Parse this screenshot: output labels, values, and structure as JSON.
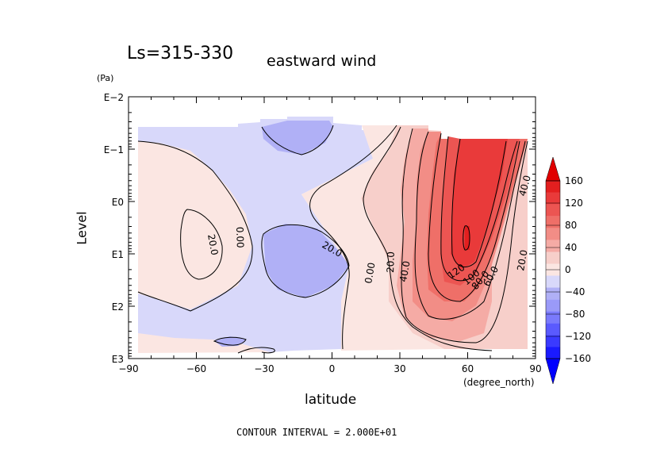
{
  "chart_data": {
    "type": "heatmap",
    "title": "Ls=315-330",
    "subtitle": "eastward wind",
    "xlabel": "latitude",
    "x_unit": "(degree_north)",
    "ylabel": "Level",
    "y_unit": "(Pa)",
    "y_scale": "log",
    "x_ticks": [
      "−90",
      "−60",
      "−30",
      "0",
      "30",
      "60",
      "90"
    ],
    "y_ticks": [
      "E−2",
      "E−1",
      "E0",
      "E1",
      "E2",
      "E3"
    ],
    "xlim": [
      -90,
      90
    ],
    "ylim_pa": [
      0.01,
      1000
    ],
    "contour_interval_text": "CONTOUR INTERVAL = 2.000E+01",
    "colorbar": {
      "labels": [
        "160",
        "120",
        "80",
        "40",
        "0",
        "−40",
        "−80",
        "−120",
        "−160"
      ],
      "levels": [
        -160,
        -140,
        -120,
        -100,
        -80,
        -60,
        -40,
        -20,
        0,
        20,
        40,
        60,
        80,
        100,
        120,
        140,
        160
      ],
      "colors": [
        "#0000ff",
        "#1a1aff",
        "#3a3aff",
        "#5a5afe",
        "#7a7afc",
        "#9a9af8",
        "#b0b0f6",
        "#d8d8fa",
        "#fbe6e2",
        "#f7cfca",
        "#f5aba5",
        "#f28d86",
        "#ef6f68",
        "#ec5552",
        "#e93a3a",
        "#e31f1f",
        "#e00000"
      ]
    },
    "contour_labels": [
      "20.0",
      "0.00",
      "20.0",
      "0.00",
      "20.0",
      "40.0",
      "120",
      "100",
      "80.0",
      "60.0",
      "40.0",
      "20.0"
    ],
    "zonal_wind_peak_ms": 140,
    "jet_core_lat": 60,
    "jet_core_pa": 3
  }
}
